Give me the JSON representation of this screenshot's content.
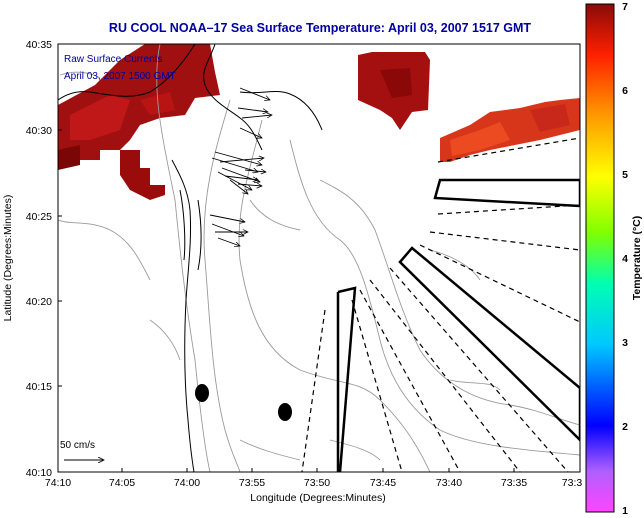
{
  "title": "RU COOL  NOAA–17  Sea Surface Temperature:  April 03, 2007 1517 GMT",
  "overlay": {
    "line1": "Raw Surface Currents",
    "line2": "April 03, 2007 1500 GMT"
  },
  "axes": {
    "xlabel": "Longitude (Degrees:Minutes)",
    "ylabel": "Latitude (Degrees:Minutes)",
    "x_ticks": [
      "74:10",
      "74:05",
      "74:00",
      "73:55",
      "73:50",
      "73:45",
      "73:40",
      "73:35",
      "73:3"
    ],
    "y_ticks": [
      "40:35",
      "40:30",
      "40:25",
      "40:20",
      "40:15",
      "40:10"
    ]
  },
  "scale_bar": {
    "label": "50 cm/s"
  },
  "colorbar": {
    "label": "Temperature (°C)",
    "ticks": [
      "7",
      "6",
      "5",
      "4",
      "3",
      "2",
      "1"
    ],
    "min": 1,
    "max": 7
  },
  "colors": {
    "title": "#0000a0",
    "sst_dark": "#8a0a0a",
    "sst_mid": "#c01818",
    "sst_light": "#e03a1a"
  }
}
